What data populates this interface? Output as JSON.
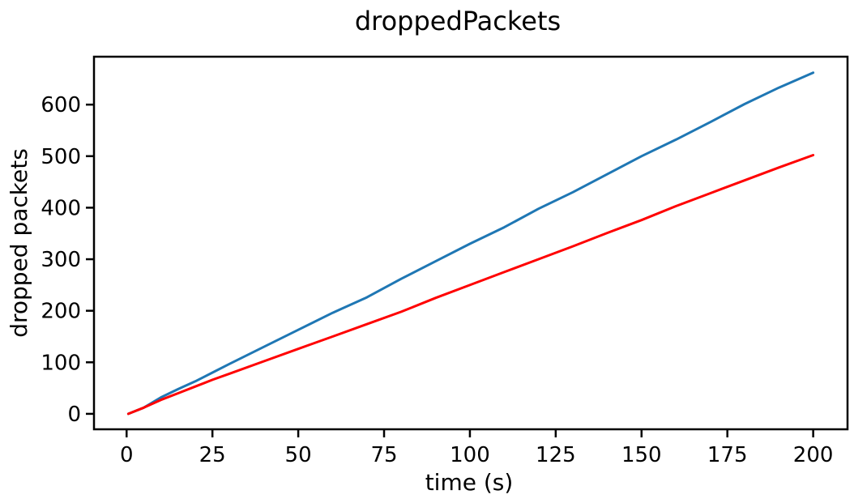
{
  "chart_data": {
    "type": "line",
    "title": "droppedPackets",
    "xlabel": "time (s)",
    "ylabel": "dropped packets",
    "xlim": [
      -9.5,
      210
    ],
    "ylim": [
      -30,
      693
    ],
    "xticks": [
      0,
      25,
      50,
      75,
      100,
      125,
      150,
      175,
      200
    ],
    "yticks": [
      0,
      100,
      200,
      300,
      400,
      500,
      600
    ],
    "xtick_labels": [
      "0",
      "25",
      "50",
      "75",
      "100",
      "125",
      "150",
      "175",
      "200"
    ],
    "ytick_labels": [
      "0",
      "100",
      "200",
      "300",
      "400",
      "500",
      "600"
    ],
    "grid": false,
    "legend": false,
    "series": [
      {
        "color": "#1f77b4",
        "x": [
          0.5,
          5,
          10,
          15,
          20,
          25,
          30,
          40,
          50,
          60,
          70,
          80,
          90,
          100,
          110,
          120,
          130,
          140,
          150,
          160,
          170,
          180,
          190,
          200
        ],
        "y": [
          0,
          12,
          32,
          48,
          63,
          80,
          97,
          130,
          163,
          196,
          226,
          262,
          296,
          330,
          362,
          398,
          430,
          465,
          500,
          532,
          566,
          601,
          633,
          662
        ]
      },
      {
        "color": "#ff0000",
        "x": [
          0.5,
          5,
          10,
          15,
          20,
          25,
          30,
          40,
          50,
          60,
          70,
          80,
          90,
          100,
          110,
          120,
          130,
          140,
          150,
          160,
          170,
          180,
          190,
          200
        ],
        "y": [
          0,
          12,
          27,
          40,
          53,
          66,
          78,
          102,
          126,
          150,
          174,
          198,
          225,
          250,
          275,
          300,
          325,
          351,
          376,
          403,
          428,
          453,
          478,
          502
        ]
      }
    ]
  }
}
